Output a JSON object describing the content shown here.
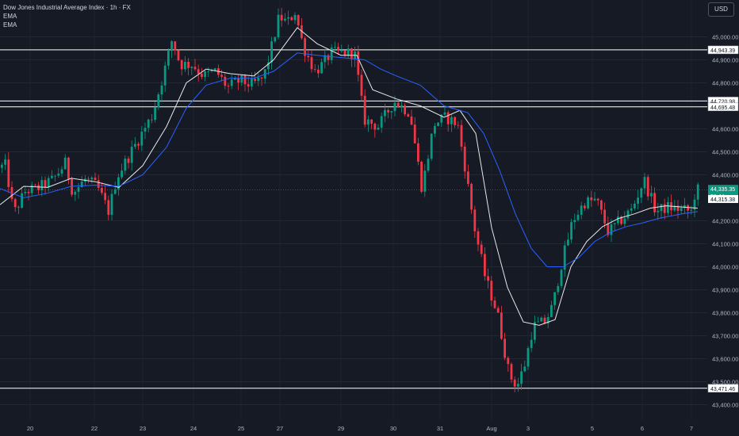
{
  "header": {
    "symbol_title": "Dow Jones Industrial Average Index · 1h · FX",
    "indicators": [
      "EMA",
      "EMA"
    ],
    "currency": "USD"
  },
  "chart_data": {
    "type": "candlestick",
    "title": "Dow Jones Industrial Average Index · 1h · FX",
    "y_axis": {
      "position": "right",
      "ticks": [
        "45,000.00",
        "44,900.00",
        "44,800.00",
        "44,600.00",
        "44,500.00",
        "44,400.00",
        "44,200.00",
        "44,100.00",
        "44,000.00",
        "43,900.00",
        "43,800.00",
        "43,700.00",
        "43,600.00",
        "43,500.00",
        "43,400.00"
      ]
    },
    "x_axis": {
      "ticks": [
        "20",
        "22",
        "23",
        "24",
        "25",
        "27",
        "29",
        "30",
        "31",
        "Aug",
        "3",
        "5",
        "6",
        "7"
      ]
    },
    "horizontal_lines": [
      44943.39,
      44720.98,
      44695.48,
      43471.46
    ],
    "horizontal_line_labels": [
      "44,943.39",
      "44,720.98",
      "44,695.48",
      "43,471.46"
    ],
    "current_price": {
      "label": "44,335.35",
      "countdown": "51:44",
      "value": 44335.35,
      "color": "#089981"
    },
    "reference_price": {
      "label": "44,315.38",
      "value": 44315.38
    },
    "colors": {
      "up": "#089981",
      "down": "#f23645",
      "ema_fast": "#e8e8e8",
      "ema_slow": "#2962ff",
      "level_line": "#ffffff"
    },
    "series": [
      {
        "name": "EMA",
        "role": "fast",
        "points": [
          [
            0,
            44270
          ],
          [
            30,
            44350
          ],
          [
            60,
            44345
          ],
          [
            90,
            44385
          ],
          [
            120,
            44370
          ],
          [
            150,
            44345
          ],
          [
            180,
            44440
          ],
          [
            210,
            44610
          ],
          [
            235,
            44800
          ],
          [
            260,
            44860
          ],
          [
            290,
            44840
          ],
          [
            320,
            44830
          ],
          [
            345,
            44900
          ],
          [
            375,
            45040
          ],
          [
            400,
            44970
          ],
          [
            430,
            44920
          ],
          [
            450,
            44920
          ],
          [
            470,
            44770
          ],
          [
            500,
            44730
          ],
          [
            530,
            44700
          ],
          [
            560,
            44650
          ],
          [
            580,
            44680
          ],
          [
            600,
            44580
          ],
          [
            620,
            44170
          ],
          [
            640,
            43910
          ],
          [
            660,
            43760
          ],
          [
            680,
            43745
          ],
          [
            700,
            43770
          ],
          [
            720,
            44000
          ],
          [
            740,
            44110
          ],
          [
            760,
            44175
          ],
          [
            780,
            44210
          ],
          [
            800,
            44230
          ],
          [
            820,
            44255
          ],
          [
            840,
            44265
          ],
          [
            860,
            44260
          ],
          [
            880,
            44255
          ]
        ]
      },
      {
        "name": "EMA",
        "role": "slow",
        "points": [
          [
            0,
            44340
          ],
          [
            30,
            44300
          ],
          [
            60,
            44320
          ],
          [
            90,
            44350
          ],
          [
            120,
            44355
          ],
          [
            150,
            44350
          ],
          [
            180,
            44400
          ],
          [
            210,
            44520
          ],
          [
            235,
            44690
          ],
          [
            260,
            44790
          ],
          [
            290,
            44820
          ],
          [
            320,
            44820
          ],
          [
            345,
            44850
          ],
          [
            375,
            44930
          ],
          [
            400,
            44920
          ],
          [
            430,
            44910
          ],
          [
            460,
            44900
          ],
          [
            480,
            44860
          ],
          [
            500,
            44830
          ],
          [
            530,
            44790
          ],
          [
            560,
            44700
          ],
          [
            590,
            44670
          ],
          [
            610,
            44580
          ],
          [
            630,
            44420
          ],
          [
            650,
            44230
          ],
          [
            670,
            44080
          ],
          [
            690,
            44000
          ],
          [
            710,
            44000
          ],
          [
            730,
            44040
          ],
          [
            750,
            44110
          ],
          [
            770,
            44150
          ],
          [
            790,
            44175
          ],
          [
            810,
            44190
          ],
          [
            830,
            44210
          ],
          [
            860,
            44230
          ],
          [
            880,
            44240
          ]
        ]
      },
      {
        "name": "price",
        "role": "close-path",
        "points": [
          [
            0,
            44430
          ],
          [
            10,
            44440
          ],
          [
            20,
            44230
          ],
          [
            35,
            44330
          ],
          [
            50,
            44340
          ],
          [
            70,
            44380
          ],
          [
            85,
            44450
          ],
          [
            95,
            44320
          ],
          [
            110,
            44380
          ],
          [
            125,
            44350
          ],
          [
            140,
            44240
          ],
          [
            150,
            44390
          ],
          [
            165,
            44480
          ],
          [
            180,
            44570
          ],
          [
            195,
            44660
          ],
          [
            210,
            44850
          ],
          [
            220,
            44990
          ],
          [
            230,
            44880
          ],
          [
            245,
            44880
          ],
          [
            260,
            44830
          ],
          [
            275,
            44850
          ],
          [
            290,
            44780
          ],
          [
            305,
            44810
          ],
          [
            320,
            44790
          ],
          [
            335,
            44820
          ],
          [
            345,
            44950
          ],
          [
            355,
            45090
          ],
          [
            365,
            45060
          ],
          [
            375,
            45110
          ],
          [
            385,
            44960
          ],
          [
            400,
            44850
          ],
          [
            410,
            44880
          ],
          [
            420,
            44930
          ],
          [
            435,
            44930
          ],
          [
            450,
            44930
          ],
          [
            462,
            44640
          ],
          [
            480,
            44610
          ],
          [
            500,
            44720
          ],
          [
            520,
            44670
          ],
          [
            535,
            44340
          ],
          [
            550,
            44620
          ],
          [
            565,
            44650
          ],
          [
            580,
            44620
          ],
          [
            590,
            44420
          ],
          [
            600,
            44190
          ],
          [
            615,
            43950
          ],
          [
            630,
            43800
          ],
          [
            645,
            43530
          ],
          [
            655,
            43480
          ],
          [
            665,
            43580
          ],
          [
            675,
            43740
          ],
          [
            690,
            43760
          ],
          [
            700,
            43830
          ],
          [
            710,
            44000
          ],
          [
            725,
            44200
          ],
          [
            740,
            44280
          ],
          [
            755,
            44290
          ],
          [
            770,
            44150
          ],
          [
            785,
            44200
          ],
          [
            800,
            44250
          ],
          [
            815,
            44380
          ],
          [
            830,
            44240
          ],
          [
            845,
            44260
          ],
          [
            860,
            44250
          ],
          [
            875,
            44240
          ],
          [
            880,
            44335
          ]
        ]
      }
    ],
    "grid": true,
    "legend": "top-left"
  }
}
